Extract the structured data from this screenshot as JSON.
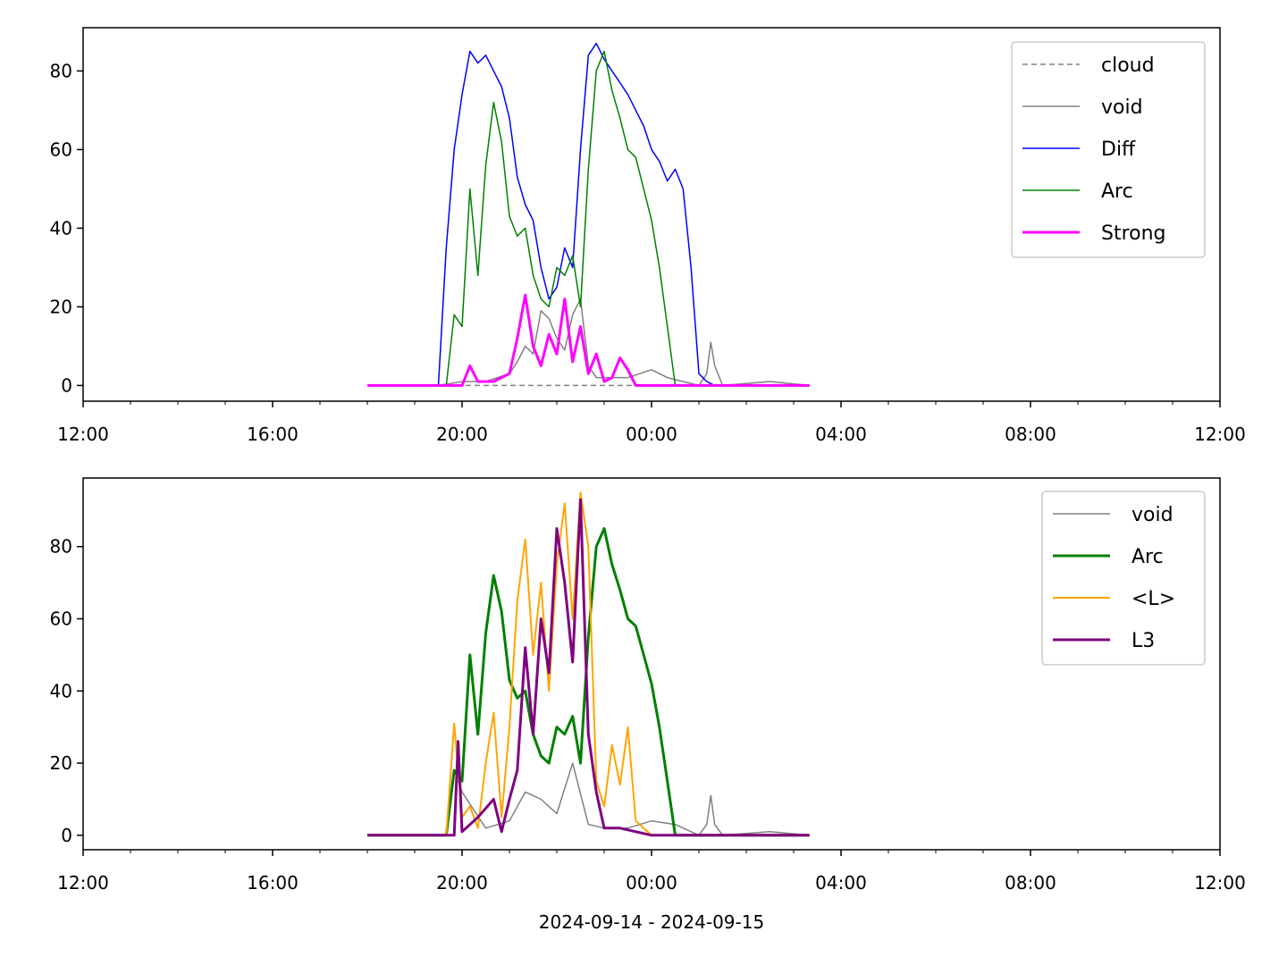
{
  "chart_data": [
    {
      "type": "line",
      "xlim": [
        "2024-09-14 12:00",
        "2024-09-15 12:00"
      ],
      "ylim": [
        -4,
        91
      ],
      "x_ticks": [
        {
          "t": "2024-09-14 12:00",
          "label": "12:00"
        },
        {
          "t": "2024-09-14 16:00",
          "label": "16:00"
        },
        {
          "t": "2024-09-14 20:00",
          "label": "20:00"
        },
        {
          "t": "2024-09-15 00:00",
          "label": "00:00"
        },
        {
          "t": "2024-09-15 04:00",
          "label": "04:00"
        },
        {
          "t": "2024-09-15 08:00",
          "label": "08:00"
        },
        {
          "t": "2024-09-15 12:00",
          "label": "12:00"
        }
      ],
      "y_ticks": [
        0,
        20,
        40,
        60,
        80
      ],
      "grid": false,
      "legend": "top-right",
      "series": [
        {
          "name": "cloud",
          "color": "#808080",
          "style": "dashed",
          "width": 1.5,
          "x": [
            "2024-09-14 18:00",
            "2024-09-15 03:20"
          ],
          "y": [
            0,
            0
          ]
        },
        {
          "name": "void",
          "color": "#808080",
          "style": "solid",
          "width": 1.5,
          "x": [
            "2024-09-14 18:00",
            "2024-09-14 19:30",
            "2024-09-14 20:00",
            "2024-09-14 20:30",
            "2024-09-14 21:00",
            "2024-09-14 21:10",
            "2024-09-14 21:20",
            "2024-09-14 21:30",
            "2024-09-14 21:40",
            "2024-09-14 21:50",
            "2024-09-14 22:00",
            "2024-09-14 22:10",
            "2024-09-14 22:20",
            "2024-09-14 22:30",
            "2024-09-14 22:40",
            "2024-09-14 22:50",
            "2024-09-14 23:00",
            "2024-09-14 23:30",
            "2024-09-15 00:00",
            "2024-09-15 00:20",
            "2024-09-15 00:40",
            "2024-09-15 01:00",
            "2024-09-15 01:10",
            "2024-09-15 01:15",
            "2024-09-15 01:20",
            "2024-09-15 01:30",
            "2024-09-15 02:30",
            "2024-09-15 03:20"
          ],
          "y": [
            0,
            0,
            1,
            1,
            3,
            6,
            10,
            8,
            19,
            17,
            12,
            9,
            18,
            22,
            5,
            2,
            2,
            2,
            4,
            2,
            1,
            0,
            3,
            11,
            5,
            0,
            1,
            0
          ]
        },
        {
          "name": "Diff",
          "color": "#0000ff",
          "style": "solid",
          "width": 1.5,
          "x": [
            "2024-09-14 18:00",
            "2024-09-14 19:30",
            "2024-09-14 19:40",
            "2024-09-14 19:50",
            "2024-09-14 20:00",
            "2024-09-14 20:10",
            "2024-09-14 20:20",
            "2024-09-14 20:30",
            "2024-09-14 20:40",
            "2024-09-14 20:50",
            "2024-09-14 21:00",
            "2024-09-14 21:10",
            "2024-09-14 21:20",
            "2024-09-14 21:30",
            "2024-09-14 21:40",
            "2024-09-14 21:50",
            "2024-09-14 22:00",
            "2024-09-14 22:10",
            "2024-09-14 22:20",
            "2024-09-14 22:30",
            "2024-09-14 22:40",
            "2024-09-14 22:50",
            "2024-09-14 23:00",
            "2024-09-14 23:10",
            "2024-09-14 23:20",
            "2024-09-14 23:30",
            "2024-09-14 23:40",
            "2024-09-14 23:50",
            "2024-09-15 00:00",
            "2024-09-15 00:10",
            "2024-09-15 00:20",
            "2024-09-15 00:30",
            "2024-09-15 00:40",
            "2024-09-15 00:50",
            "2024-09-15 01:00",
            "2024-09-15 01:10",
            "2024-09-15 01:20",
            "2024-09-15 03:20"
          ],
          "y": [
            0,
            0,
            35,
            60,
            74,
            85,
            82,
            84,
            80,
            76,
            68,
            53,
            46,
            42,
            30,
            22,
            25,
            35,
            30,
            60,
            84,
            87,
            83,
            80,
            77,
            74,
            70,
            66,
            60,
            57,
            52,
            55,
            50,
            30,
            3,
            1,
            0,
            0
          ]
        },
        {
          "name": "Arc",
          "color": "#008000",
          "style": "solid",
          "width": 1.5,
          "x": [
            "2024-09-14 18:00",
            "2024-09-14 19:40",
            "2024-09-14 19:50",
            "2024-09-14 20:00",
            "2024-09-14 20:10",
            "2024-09-14 20:20",
            "2024-09-14 20:30",
            "2024-09-14 20:40",
            "2024-09-14 20:50",
            "2024-09-14 21:00",
            "2024-09-14 21:10",
            "2024-09-14 21:20",
            "2024-09-14 21:30",
            "2024-09-14 21:40",
            "2024-09-14 21:50",
            "2024-09-14 22:00",
            "2024-09-14 22:10",
            "2024-09-14 22:20",
            "2024-09-14 22:30",
            "2024-09-14 22:40",
            "2024-09-14 22:50",
            "2024-09-14 23:00",
            "2024-09-14 23:10",
            "2024-09-14 23:20",
            "2024-09-14 23:30",
            "2024-09-14 23:40",
            "2024-09-14 23:50",
            "2024-09-15 00:00",
            "2024-09-15 00:10",
            "2024-09-15 00:20",
            "2024-09-15 00:30",
            "2024-09-15 03:20"
          ],
          "y": [
            0,
            0,
            18,
            15,
            50,
            28,
            56,
            72,
            62,
            43,
            38,
            40,
            28,
            22,
            20,
            30,
            28,
            33,
            20,
            55,
            80,
            85,
            75,
            68,
            60,
            58,
            50,
            42,
            30,
            15,
            0,
            0
          ]
        },
        {
          "name": "Strong",
          "color": "#ff00ff",
          "style": "solid",
          "width": 3,
          "x": [
            "2024-09-14 18:00",
            "2024-09-14 20:00",
            "2024-09-14 20:10",
            "2024-09-14 20:20",
            "2024-09-14 20:40",
            "2024-09-14 21:00",
            "2024-09-14 21:10",
            "2024-09-14 21:20",
            "2024-09-14 21:30",
            "2024-09-14 21:40",
            "2024-09-14 21:50",
            "2024-09-14 22:00",
            "2024-09-14 22:10",
            "2024-09-14 22:20",
            "2024-09-14 22:30",
            "2024-09-14 22:40",
            "2024-09-14 22:50",
            "2024-09-14 23:00",
            "2024-09-14 23:10",
            "2024-09-14 23:20",
            "2024-09-14 23:30",
            "2024-09-14 23:40",
            "2024-09-15 00:00",
            "2024-09-15 03:20"
          ],
          "y": [
            0,
            0,
            5,
            1,
            1,
            3,
            12,
            23,
            10,
            5,
            13,
            8,
            22,
            6,
            15,
            3,
            8,
            1,
            2,
            7,
            4,
            0,
            0,
            0
          ]
        }
      ]
    },
    {
      "type": "line",
      "xlabel": "2024-09-14 - 2024-09-15",
      "xlim": [
        "2024-09-14 12:00",
        "2024-09-15 12:00"
      ],
      "ylim": [
        -4,
        99
      ],
      "x_ticks": [
        {
          "t": "2024-09-14 12:00",
          "label": "12:00"
        },
        {
          "t": "2024-09-14 16:00",
          "label": "16:00"
        },
        {
          "t": "2024-09-14 20:00",
          "label": "20:00"
        },
        {
          "t": "2024-09-15 00:00",
          "label": "00:00"
        },
        {
          "t": "2024-09-15 04:00",
          "label": "04:00"
        },
        {
          "t": "2024-09-15 08:00",
          "label": "08:00"
        },
        {
          "t": "2024-09-15 12:00",
          "label": "12:00"
        }
      ],
      "y_ticks": [
        0,
        20,
        40,
        60,
        80
      ],
      "grid": false,
      "legend": "top-right",
      "series": [
        {
          "name": "void",
          "color": "#808080",
          "style": "solid",
          "width": 1.5,
          "x": [
            "2024-09-14 18:00",
            "2024-09-14 19:40",
            "2024-09-14 19:50",
            "2024-09-14 20:00",
            "2024-09-14 20:30",
            "2024-09-14 21:00",
            "2024-09-14 21:20",
            "2024-09-14 21:40",
            "2024-09-14 22:00",
            "2024-09-14 22:20",
            "2024-09-14 22:40",
            "2024-09-14 23:00",
            "2024-09-14 23:30",
            "2024-09-15 00:00",
            "2024-09-15 00:30",
            "2024-09-15 01:00",
            "2024-09-15 01:10",
            "2024-09-15 01:15",
            "2024-09-15 01:20",
            "2024-09-15 01:30",
            "2024-09-15 02:30",
            "2024-09-15 03:20"
          ],
          "y": [
            0,
            0,
            18,
            12,
            2,
            4,
            12,
            10,
            6,
            20,
            3,
            2,
            2,
            4,
            3,
            0,
            3,
            11,
            3,
            0,
            1,
            0
          ]
        },
        {
          "name": "Arc",
          "color": "#008000",
          "style": "solid",
          "width": 3,
          "x": [
            "2024-09-14 18:00",
            "2024-09-14 19:40",
            "2024-09-14 19:50",
            "2024-09-14 20:00",
            "2024-09-14 20:10",
            "2024-09-14 20:20",
            "2024-09-14 20:30",
            "2024-09-14 20:40",
            "2024-09-14 20:50",
            "2024-09-14 21:00",
            "2024-09-14 21:10",
            "2024-09-14 21:20",
            "2024-09-14 21:30",
            "2024-09-14 21:40",
            "2024-09-14 21:50",
            "2024-09-14 22:00",
            "2024-09-14 22:10",
            "2024-09-14 22:20",
            "2024-09-14 22:30",
            "2024-09-14 22:40",
            "2024-09-14 22:50",
            "2024-09-14 23:00",
            "2024-09-14 23:10",
            "2024-09-14 23:20",
            "2024-09-14 23:30",
            "2024-09-14 23:40",
            "2024-09-14 23:50",
            "2024-09-15 00:00",
            "2024-09-15 00:10",
            "2024-09-15 00:20",
            "2024-09-15 00:30",
            "2024-09-15 03:20"
          ],
          "y": [
            0,
            0,
            18,
            15,
            50,
            28,
            56,
            72,
            62,
            43,
            38,
            40,
            28,
            22,
            20,
            30,
            28,
            33,
            20,
            55,
            80,
            85,
            75,
            68,
            60,
            58,
            50,
            42,
            30,
            15,
            0,
            0
          ]
        },
        {
          "name": "<L>",
          "color": "#ffa500",
          "style": "solid",
          "width": 2,
          "x": [
            "2024-09-14 18:00",
            "2024-09-14 19:40",
            "2024-09-14 19:50",
            "2024-09-14 20:00",
            "2024-09-14 20:10",
            "2024-09-14 20:20",
            "2024-09-14 20:30",
            "2024-09-14 20:40",
            "2024-09-14 20:50",
            "2024-09-14 21:00",
            "2024-09-14 21:10",
            "2024-09-14 21:20",
            "2024-09-14 21:30",
            "2024-09-14 21:40",
            "2024-09-14 21:50",
            "2024-09-14 22:00",
            "2024-09-14 22:10",
            "2024-09-14 22:20",
            "2024-09-14 22:30",
            "2024-09-14 22:40",
            "2024-09-14 22:50",
            "2024-09-14 23:00",
            "2024-09-14 23:10",
            "2024-09-14 23:20",
            "2024-09-14 23:30",
            "2024-09-14 23:40",
            "2024-09-15 00:00",
            "2024-09-15 03:20"
          ],
          "y": [
            0,
            0,
            31,
            5,
            8,
            2,
            20,
            34,
            5,
            30,
            65,
            82,
            50,
            70,
            40,
            75,
            92,
            60,
            95,
            80,
            15,
            8,
            25,
            14,
            30,
            4,
            0,
            0
          ]
        },
        {
          "name": "L3",
          "color": "#800080",
          "style": "solid",
          "width": 3,
          "x": [
            "2024-09-14 18:00",
            "2024-09-14 19:50",
            "2024-09-14 19:55",
            "2024-09-14 20:00",
            "2024-09-14 20:20",
            "2024-09-14 20:40",
            "2024-09-14 20:50",
            "2024-09-14 21:00",
            "2024-09-14 21:10",
            "2024-09-14 21:20",
            "2024-09-14 21:30",
            "2024-09-14 21:40",
            "2024-09-14 21:50",
            "2024-09-14 22:00",
            "2024-09-14 22:10",
            "2024-09-14 22:20",
            "2024-09-14 22:30",
            "2024-09-14 22:40",
            "2024-09-14 22:50",
            "2024-09-14 23:00",
            "2024-09-14 23:20",
            "2024-09-15 00:00",
            "2024-09-15 03:20"
          ],
          "y": [
            0,
            0,
            26,
            1,
            5,
            10,
            1,
            10,
            18,
            52,
            28,
            60,
            45,
            85,
            70,
            48,
            93,
            28,
            12,
            2,
            2,
            0,
            0
          ]
        }
      ]
    }
  ],
  "legends": [
    {
      "entries": [
        "cloud",
        "void",
        "Diff",
        "Arc",
        "Strong"
      ]
    },
    {
      "entries": [
        "void",
        "Arc",
        "<L>",
        "L3"
      ]
    }
  ]
}
